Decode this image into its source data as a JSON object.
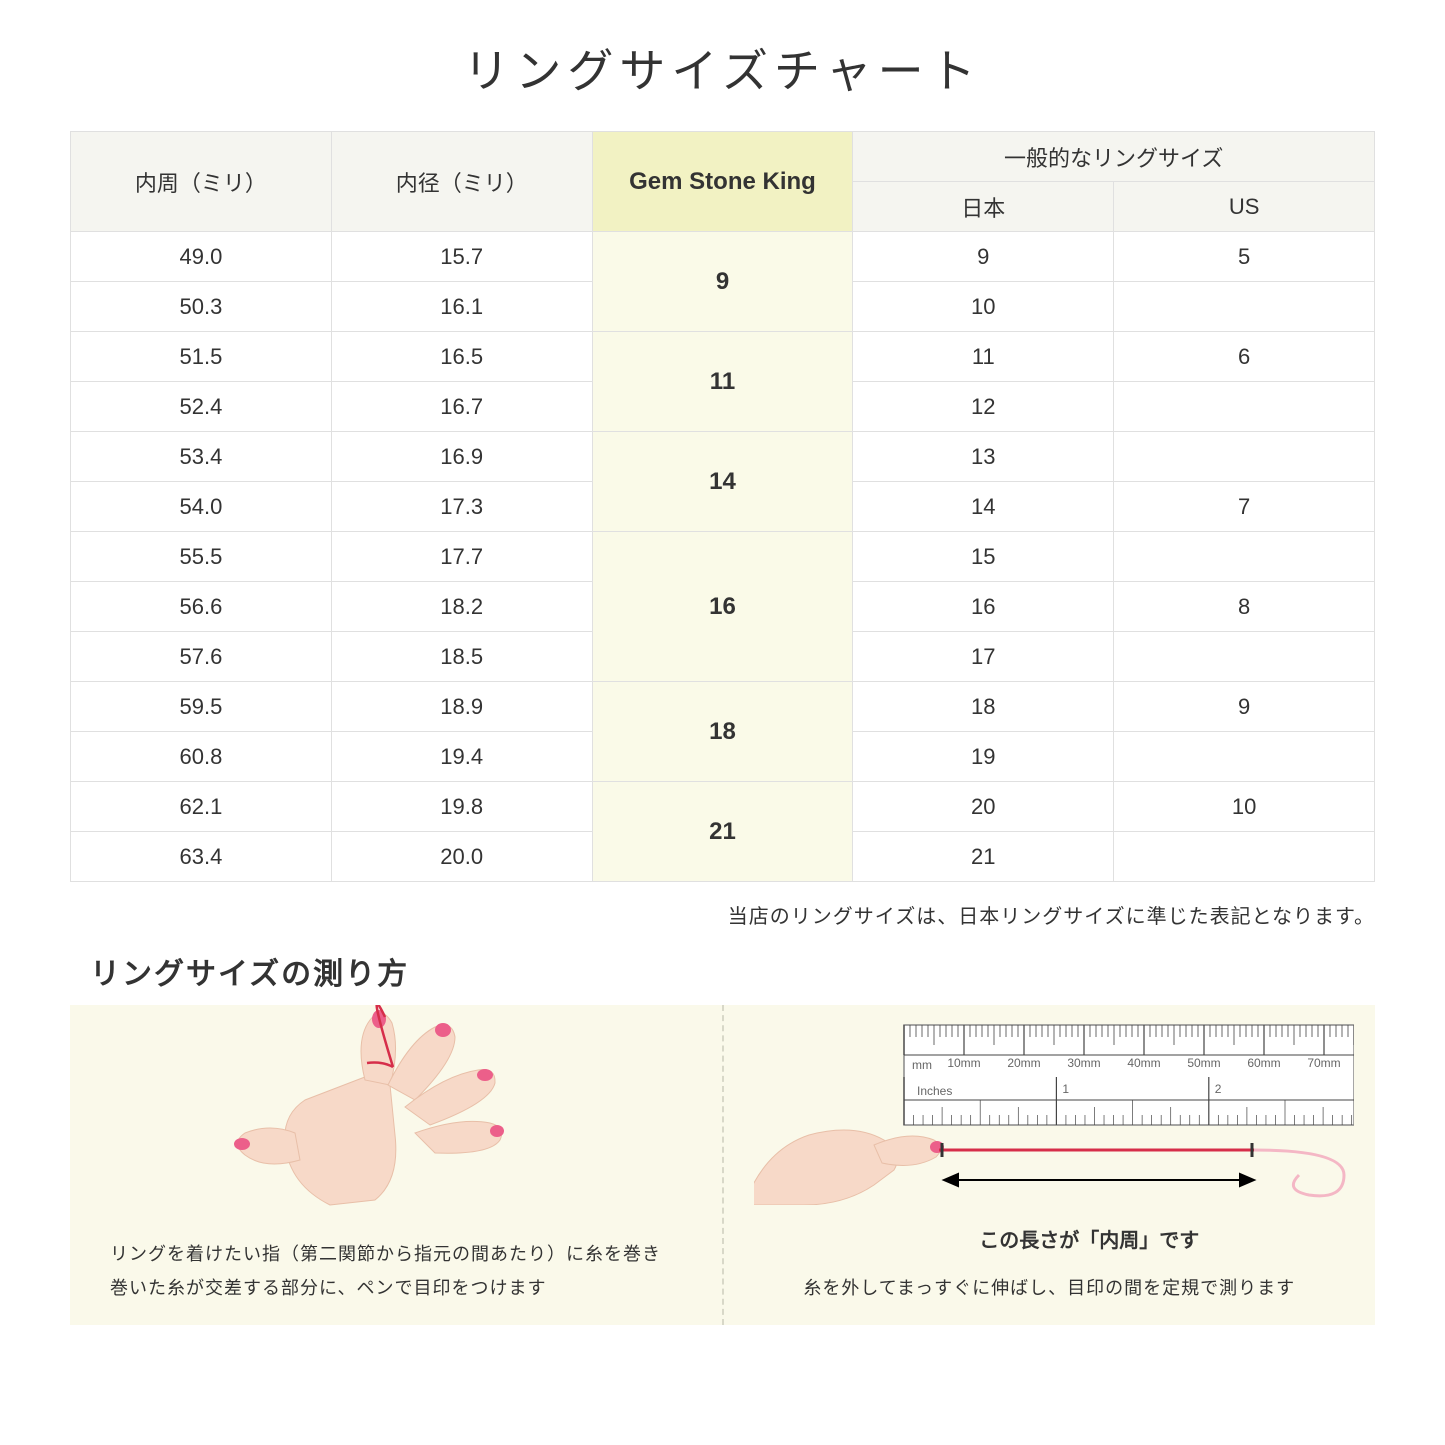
{
  "title": "リングサイズチャート",
  "table": {
    "headers": {
      "col1": "内周（ミリ）",
      "col2": "内径（ミリ）",
      "col3": "Gem Stone King",
      "col45_top": "一般的なリングサイズ",
      "col4": "日本",
      "col5": "US"
    },
    "groups": [
      {
        "gsk": "9",
        "rows": [
          {
            "c1": "49.0",
            "c2": "15.7",
            "jp": "9",
            "us": "5"
          },
          {
            "c1": "50.3",
            "c2": "16.1",
            "jp": "10",
            "us": ""
          }
        ]
      },
      {
        "gsk": "11",
        "rows": [
          {
            "c1": "51.5",
            "c2": "16.5",
            "jp": "11",
            "us": "6"
          },
          {
            "c1": "52.4",
            "c2": "16.7",
            "jp": "12",
            "us": ""
          }
        ]
      },
      {
        "gsk": "14",
        "rows": [
          {
            "c1": "53.4",
            "c2": "16.9",
            "jp": "13",
            "us": ""
          },
          {
            "c1": "54.0",
            "c2": "17.3",
            "jp": "14",
            "us": "7"
          }
        ]
      },
      {
        "gsk": "16",
        "rows": [
          {
            "c1": "55.5",
            "c2": "17.7",
            "jp": "15",
            "us": ""
          },
          {
            "c1": "56.6",
            "c2": "18.2",
            "jp": "16",
            "us": "8"
          },
          {
            "c1": "57.6",
            "c2": "18.5",
            "jp": "17",
            "us": ""
          }
        ]
      },
      {
        "gsk": "18",
        "rows": [
          {
            "c1": "59.5",
            "c2": "18.9",
            "jp": "18",
            "us": "9"
          },
          {
            "c1": "60.8",
            "c2": "19.4",
            "jp": "19",
            "us": ""
          }
        ]
      },
      {
        "gsk": "21",
        "rows": [
          {
            "c1": "62.1",
            "c2": "19.8",
            "jp": "20",
            "us": "10"
          },
          {
            "c1": "63.4",
            "c2": "20.0",
            "jp": "21",
            "us": ""
          }
        ]
      }
    ],
    "styling": {
      "border_color": "#e0e0e0",
      "header_bg": "#f5f5f0",
      "highlight_header_bg": "#f2f2c3",
      "highlight_cell_bg": "#fafae8",
      "font_size_normal": 22,
      "font_size_highlight": 24
    }
  },
  "note": "当店のリングサイズは、日本リングサイズに準じた表記となります。",
  "subtitle": "リングサイズの測り方",
  "howto": {
    "bg_color": "#faf9ea",
    "left_text_line1": "リングを着けたい指（第二関節から指元の間あたり）に糸を巻き",
    "left_text_line2": "巻いた糸が交差する部分に、ペンで目印をつけます",
    "right_arrow_label": "この長さが「内周」です",
    "right_text": "糸を外してまっすぐに伸ばし、目印の間を定規で測ります",
    "ruler": {
      "mm_labels": [
        "10mm",
        "20mm",
        "30mm",
        "40mm",
        "50mm",
        "60mm",
        "70mm"
      ],
      "mm_label": "mm",
      "inches_label": "Inches",
      "inch_numbers": [
        "1",
        "2"
      ]
    },
    "colors": {
      "skin": "#f7d9c8",
      "nail": "#ec5f8a",
      "thread": "#d62e4a",
      "ruler_border": "#888888",
      "arrow": "#000000"
    }
  }
}
